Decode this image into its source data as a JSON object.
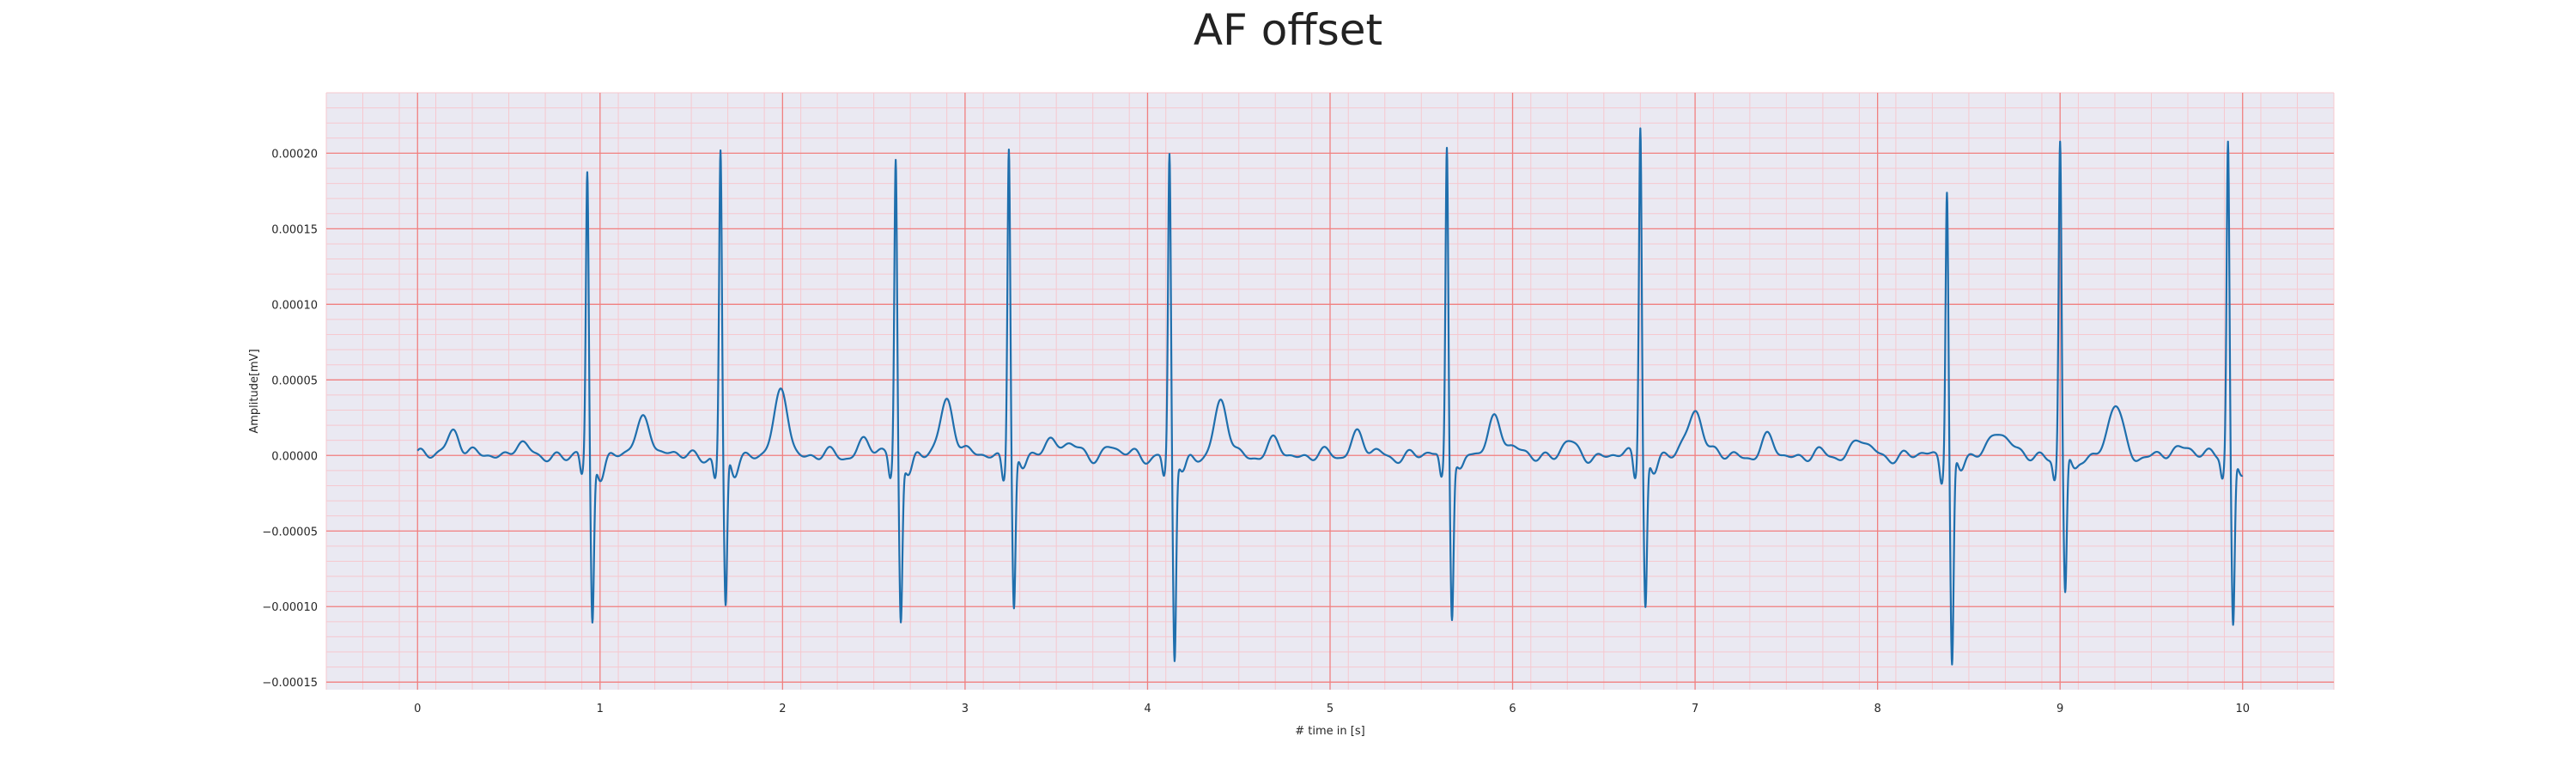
{
  "chart_data": {
    "type": "line",
    "title": "AF offset",
    "xlabel": "# time in [s]",
    "ylabel": "Amplitude[mV]",
    "xlim": [
      -0.5,
      10.5
    ],
    "ylim": [
      -0.000155,
      0.00024
    ],
    "x_ticks": [
      0,
      1,
      2,
      3,
      4,
      5,
      6,
      7,
      8,
      9,
      10
    ],
    "x_tick_labels": [
      "0",
      "1",
      "2",
      "3",
      "4",
      "5",
      "6",
      "7",
      "8",
      "9",
      "10"
    ],
    "y_ticks": [
      -0.00015,
      -0.0001,
      -5e-05,
      0,
      5e-05,
      0.0001,
      0.00015,
      0.0002
    ],
    "y_tick_labels": [
      "−0.00015",
      "−0.00010",
      "−0.00005",
      "0.00000",
      "0.00005",
      "0.00010",
      "0.00015",
      "0.00020"
    ],
    "grid": {
      "major": true,
      "minor": true,
      "major_color": "#f08080",
      "minor_color": "#f6c8cf"
    },
    "background_color": "#eae9f2",
    "series": [
      {
        "color": "#1f6fad",
        "beats": [
          {
            "t": 0.93,
            "r": 0.000185,
            "s": -0.00011
          },
          {
            "t": 1.66,
            "r": 0.0002,
            "s": -0.000103
          },
          {
            "t": 2.62,
            "r": 0.000198,
            "s": -0.000106
          },
          {
            "t": 3.24,
            "r": 0.000208,
            "s": -0.0001
          },
          {
            "t": 4.12,
            "r": 0.000198,
            "s": -0.000135
          },
          {
            "t": 5.64,
            "r": 0.000208,
            "s": -0.000103
          },
          {
            "t": 6.7,
            "r": 0.000222,
            "s": -9.7e-05
          },
          {
            "t": 8.38,
            "r": 0.00018,
            "s": -0.000138
          },
          {
            "t": 9.0,
            "r": 0.000208,
            "s": -9.2e-05
          },
          {
            "t": 9.92,
            "r": 0.000206,
            "s": -0.000112
          }
        ],
        "baseline_waves": [
          {
            "t": 0.2,
            "h": 1.8e-05
          },
          {
            "t": 0.55,
            "h": 8e-06
          },
          {
            "t": 1.25,
            "h": 1.8e-05
          },
          {
            "t": 2.0,
            "h": 3.5e-05
          },
          {
            "t": 2.45,
            "h": 1e-05
          },
          {
            "t": 2.9,
            "h": 3e-05
          },
          {
            "t": 3.45,
            "h": 8e-06
          },
          {
            "t": 3.8,
            "h": 6e-06
          },
          {
            "t": 4.4,
            "h": 2.5e-05
          },
          {
            "t": 4.7,
            "h": 8e-06
          },
          {
            "t": 5.15,
            "h": 1.5e-05
          },
          {
            "t": 5.9,
            "h": 2e-05
          },
          {
            "t": 6.3,
            "h": 8e-06
          },
          {
            "t": 7.0,
            "h": 2.5e-05
          },
          {
            "t": 7.4,
            "h": 1e-05
          },
          {
            "t": 7.9,
            "h": 1.2e-05
          },
          {
            "t": 8.65,
            "h": 1.2e-05
          },
          {
            "t": 9.3,
            "h": 2.5e-05
          },
          {
            "t": 9.7,
            "h": 8e-06
          }
        ]
      }
    ],
    "x_end": 10.0
  }
}
